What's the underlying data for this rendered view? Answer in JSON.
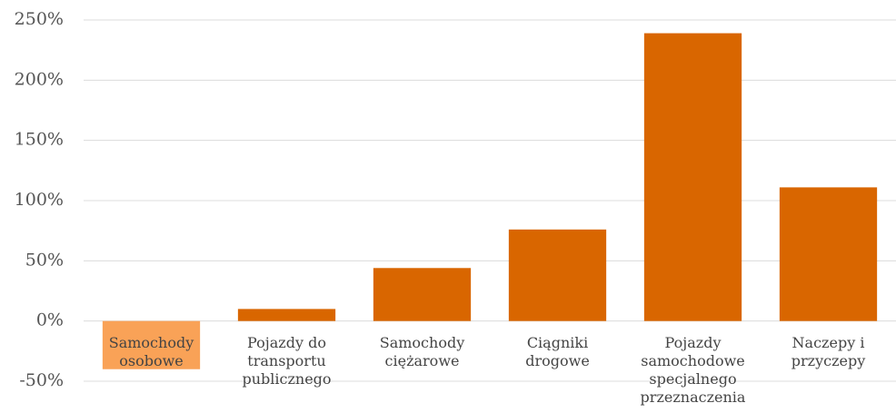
{
  "chart_data": {
    "type": "bar",
    "categories": [
      "Samochody osobowe",
      "Pojazdy do transportu publicznego",
      "Samochody ciężarowe",
      "Ciągniki drogowe",
      "Pojazdy samochodowe specjalnego przeznaczenia",
      "Naczepy i przyczepy"
    ],
    "values": [
      -40,
      10,
      44,
      76,
      239,
      111
    ],
    "colors": [
      "#f9a257",
      "#d96600",
      "#d96600",
      "#d96600",
      "#d96600",
      "#d96600"
    ],
    "ylim": [
      -50,
      250
    ],
    "yticks": [
      {
        "value": -50,
        "label": "-50%"
      },
      {
        "value": 0,
        "label": "0%"
      },
      {
        "value": 50,
        "label": "50%"
      },
      {
        "value": 100,
        "label": "100%"
      },
      {
        "value": 150,
        "label": "150%"
      },
      {
        "value": 200,
        "label": "200%"
      },
      {
        "value": 250,
        "label": "250%"
      }
    ],
    "grid": true
  }
}
